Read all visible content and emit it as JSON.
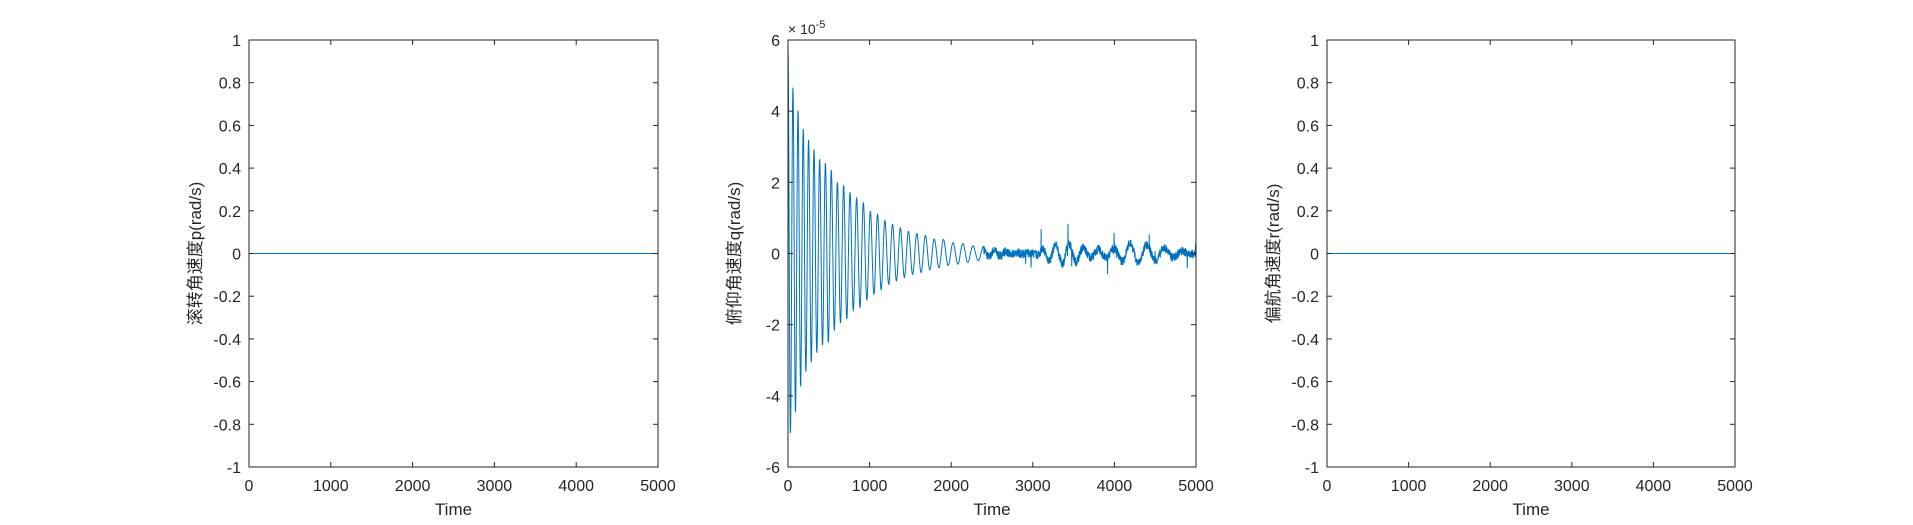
{
  "chart_data": [
    {
      "type": "line",
      "xlabel": "Time",
      "ylabel": "滚转角速度p(rad/s)",
      "xlim": [
        0,
        5000
      ],
      "ylim": [
        -1,
        1
      ],
      "xticks": [
        0,
        1000,
        2000,
        3000,
        4000,
        5000
      ],
      "yticks": [
        -1,
        -0.8,
        -0.6,
        -0.4,
        -0.2,
        0,
        0.2,
        0.4,
        0.6,
        0.8,
        1
      ],
      "ytick_labels": [
        "-1",
        "-0.8",
        "-0.6",
        "-0.4",
        "-0.2",
        "0",
        "0.2",
        "0.4",
        "0.6",
        "0.8",
        "1"
      ],
      "grid": false,
      "series": [
        {
          "x": [
            0,
            5000
          ],
          "y": [
            0,
            0
          ]
        }
      ]
    },
    {
      "type": "line",
      "xlabel": "Time",
      "ylabel": "俯仰角速度q(rad/s)",
      "xlim": [
        0,
        5000
      ],
      "ylim": [
        -6e-05,
        6e-05
      ],
      "yaxis_multiplier": "× 10^-5",
      "multiplier_base": "×",
      "multiplier_mantissa": "10",
      "multiplier_exponent": "-5",
      "xticks": [
        0,
        1000,
        2000,
        3000,
        4000,
        5000
      ],
      "yticks": [
        -6e-05,
        -4e-05,
        -2e-05,
        0,
        2e-05,
        4e-05,
        6e-05
      ],
      "ytick_labels": [
        "-6",
        "-4",
        "-2",
        "0",
        "2",
        "4",
        "6"
      ],
      "grid": false,
      "description_type": "damped oscillation",
      "series": [
        {
          "x": [
            0,
            40,
            70,
            100,
            130,
            160,
            200,
            250,
            300,
            400,
            500,
            600,
            700,
            800,
            900,
            1000,
            1100,
            1200,
            1300,
            1400,
            1500,
            1600,
            1700,
            1800,
            1900,
            2000,
            2100,
            2200,
            2300,
            2400,
            2500,
            2700,
            3000,
            3200,
            3400,
            3500,
            3700,
            4000,
            4200,
            4500,
            5000
          ],
          "y": [
            5.8e-05,
            -4.8e-05,
            4.6e-05,
            -4.4e-05,
            3.9e-05,
            -3.7e-05,
            3.4e-05,
            -3.2e-05,
            3e-05,
            2.6e-05,
            -2.5e-05,
            2e-05,
            -1.9e-05,
            1.6e-05,
            -1.5e-05,
            1.2e-05,
            -1.1e-05,
            9e-06,
            -8e-06,
            7e-06,
            -6e-06,
            5.5e-06,
            -5e-06,
            4e-06,
            -4e-06,
            3e-06,
            -3e-06,
            2.5e-06,
            -2e-06,
            2e-06,
            -2e-06,
            1e-06,
            0.0,
            4e-06,
            -6e-06,
            5e-06,
            -2e-06,
            3e-06,
            -6e-06,
            4e-06,
            0.0
          ]
        }
      ]
    },
    {
      "type": "line",
      "xlabel": "Time",
      "ylabel": "偏航角速度r(rad/s)",
      "xlim": [
        0,
        5000
      ],
      "ylim": [
        -1,
        1
      ],
      "xticks": [
        0,
        1000,
        2000,
        3000,
        4000,
        5000
      ],
      "yticks": [
        -1,
        -0.8,
        -0.6,
        -0.4,
        -0.2,
        0,
        0.2,
        0.4,
        0.6,
        0.8,
        1
      ],
      "ytick_labels": [
        "-1",
        "-0.8",
        "-0.6",
        "-0.4",
        "-0.2",
        "0",
        "0.2",
        "0.4",
        "0.6",
        "0.8",
        "1"
      ],
      "grid": false,
      "series": [
        {
          "x": [
            0,
            5000
          ],
          "y": [
            0,
            0
          ]
        }
      ]
    }
  ],
  "colors": {
    "line": "#0072BD",
    "axis": "#262626",
    "background": "#ffffff"
  }
}
